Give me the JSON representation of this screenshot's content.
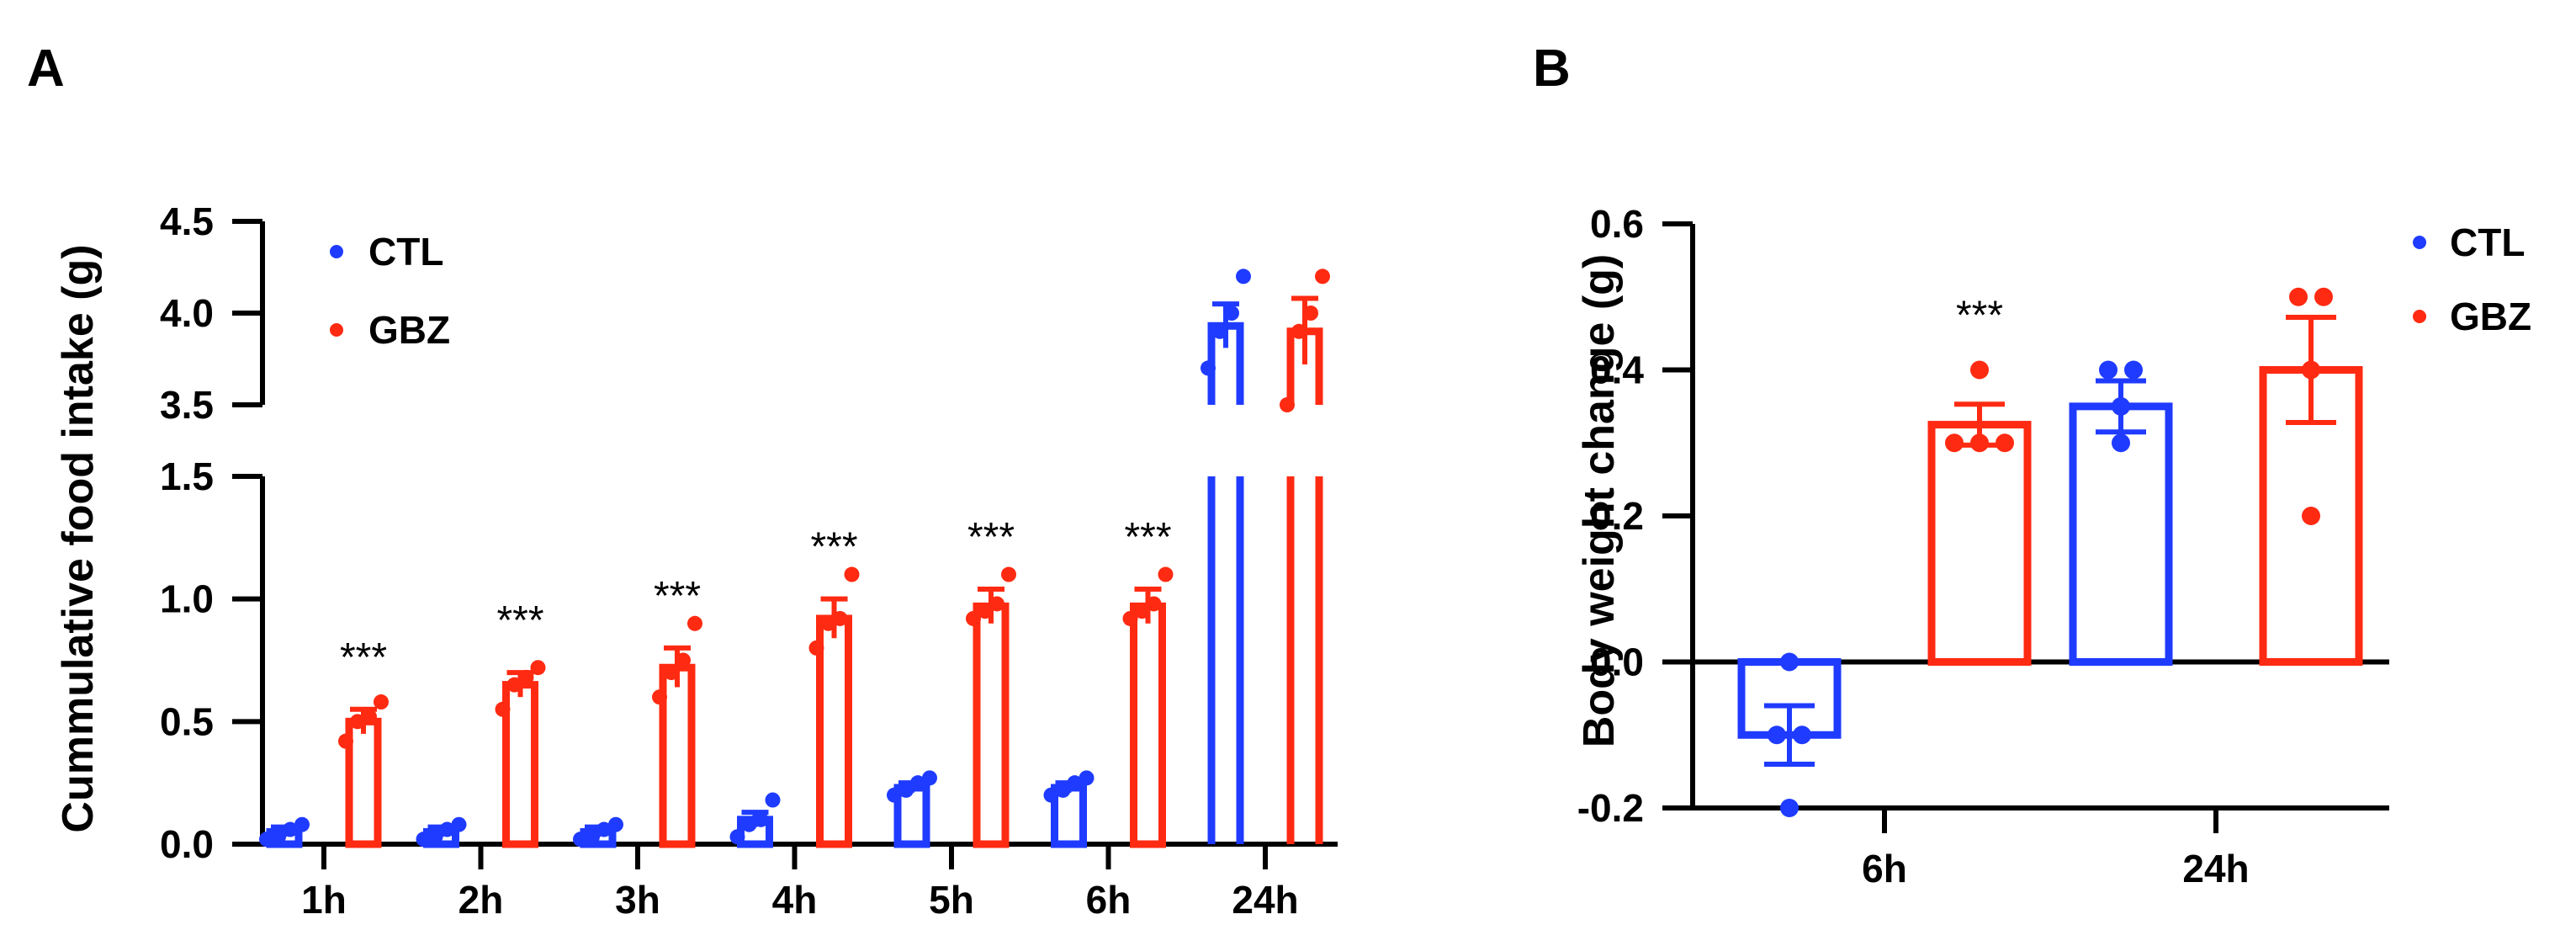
{
  "panels": {
    "A": "A",
    "B": "B"
  },
  "colors": {
    "ctl": "#1f3bff",
    "gbz": "#ff2a12",
    "axis": "#000000"
  },
  "chart_data": [
    {
      "type": "bar",
      "panel": "A",
      "title": "",
      "xlabel": "",
      "ylabel": "Cummulative food intake (g)",
      "axis_break": true,
      "ylim_lower": [
        0,
        1.5
      ],
      "ylim_upper": [
        3.5,
        4.5
      ],
      "yticks_lower": [
        "0.0",
        "0.5",
        "1.0",
        "1.5"
      ],
      "yticks_upper": [
        "3.5",
        "4.0",
        "4.5"
      ],
      "categories": [
        "1h",
        "2h",
        "3h",
        "4h",
        "5h",
        "6h",
        "24h"
      ],
      "legend": [
        "CTL",
        "GBZ"
      ],
      "legend_position": "top-left",
      "series": [
        {
          "name": "CTL",
          "values": [
            0.05,
            0.05,
            0.05,
            0.1,
            0.23,
            0.23,
            3.93
          ],
          "sem": [
            0.02,
            0.02,
            0.02,
            0.03,
            0.02,
            0.02,
            0.12
          ],
          "points": [
            [
              0.02,
              0.03,
              0.06,
              0.08
            ],
            [
              0.02,
              0.03,
              0.06,
              0.08
            ],
            [
              0.02,
              0.03,
              0.06,
              0.08
            ],
            [
              0.03,
              0.08,
              0.1,
              0.18
            ],
            [
              0.2,
              0.22,
              0.25,
              0.27
            ],
            [
              0.2,
              0.22,
              0.25,
              0.27
            ],
            [
              3.7,
              3.9,
              4.0,
              4.2
            ]
          ]
        },
        {
          "name": "GBZ",
          "values": [
            0.5,
            0.65,
            0.72,
            0.92,
            0.97,
            0.97,
            3.9
          ],
          "sem": [
            0.05,
            0.05,
            0.08,
            0.08,
            0.07,
            0.07,
            0.18
          ],
          "points": [
            [
              0.42,
              0.5,
              0.52,
              0.58
            ],
            [
              0.55,
              0.65,
              0.68,
              0.72
            ],
            [
              0.6,
              0.7,
              0.75,
              0.9
            ],
            [
              0.8,
              0.9,
              0.92,
              1.1
            ],
            [
              0.92,
              0.95,
              0.98,
              1.1
            ],
            [
              0.92,
              0.95,
              0.98,
              1.1
            ],
            [
              3.5,
              3.9,
              4.0,
              4.2
            ]
          ]
        }
      ],
      "annotations": [
        "***",
        "***",
        "***",
        "***",
        "***",
        "***",
        ""
      ]
    },
    {
      "type": "bar",
      "panel": "B",
      "title": "",
      "xlabel": "",
      "ylabel": "Body weight change (g)",
      "ylim": [
        -0.2,
        0.6
      ],
      "yticks": [
        "-0.2",
        "0.0",
        "0.2",
        "0.4",
        "0.6"
      ],
      "categories": [
        "6h",
        "24h"
      ],
      "legend": [
        "CTL",
        "GBZ"
      ],
      "legend_position": "top-right",
      "series": [
        {
          "name": "CTL",
          "values": [
            -0.1,
            0.35
          ],
          "sem": [
            0.04,
            0.035
          ],
          "points": [
            [
              -0.2,
              -0.1,
              -0.1,
              0.0
            ],
            [
              0.3,
              0.35,
              0.4,
              0.4
            ]
          ]
        },
        {
          "name": "GBZ",
          "values": [
            0.325,
            0.4
          ],
          "sem": [
            0.028,
            0.072
          ],
          "points": [
            [
              0.3,
              0.3,
              0.3,
              0.4
            ],
            [
              0.2,
              0.4,
              0.5,
              0.5
            ]
          ]
        }
      ],
      "annotations": [
        "***",
        ""
      ]
    }
  ]
}
